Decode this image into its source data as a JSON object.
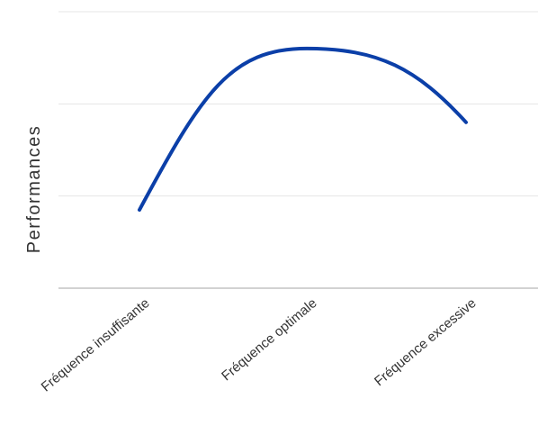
{
  "chart_data": {
    "type": "line",
    "categories": [
      "Fréquence insuffisante",
      "Fréquence optimale",
      "Fréquence excessive"
    ],
    "series": [
      {
        "values": [
          1.7,
          5.2,
          3.6
        ]
      }
    ],
    "title": "",
    "xlabel": "",
    "ylabel": "Performances",
    "ylim": [
      0,
      6
    ],
    "y_ticks": [
      0,
      2,
      4,
      6
    ],
    "grid": true,
    "smooth": true,
    "line_color": "#0b3fa8"
  }
}
